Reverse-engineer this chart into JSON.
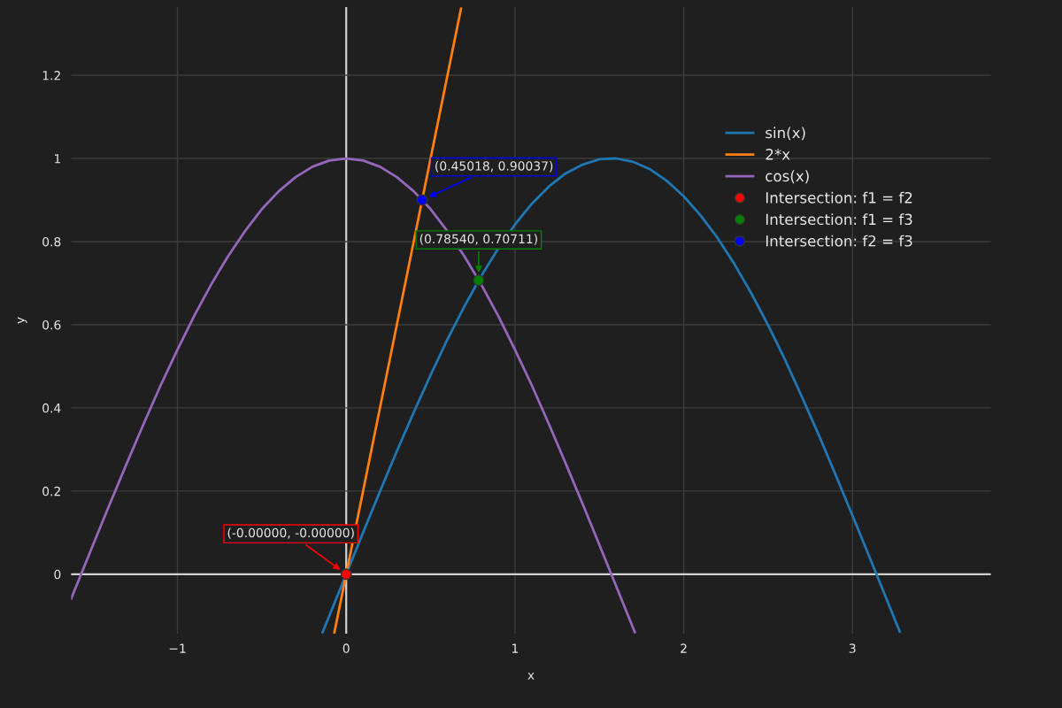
{
  "chart_data": {
    "type": "line",
    "xlabel": "x",
    "ylabel": "y",
    "xlim": [
      -1.63,
      3.82
    ],
    "ylim": [
      -0.143,
      1.364
    ],
    "xticks": [
      {
        "value": -1,
        "label": "−1"
      },
      0,
      1,
      2,
      3
    ],
    "yticks": [
      0,
      0.2,
      0.4,
      0.6,
      0.8,
      1,
      1.2
    ],
    "grid": true,
    "legend": "top right",
    "line_style": "solid",
    "series": [
      {
        "name": "sin(x)",
        "color": "#1f77b4",
        "x": [
          -0.14,
          -0.1,
          0,
          0.1,
          0.2,
          0.3,
          0.4,
          0.5,
          0.6,
          0.7,
          0.8,
          0.9,
          1.0,
          1.1,
          1.2,
          1.3,
          1.4,
          1.5,
          1.6,
          1.7,
          1.8,
          1.9,
          2.0,
          2.1,
          2.2,
          2.3,
          2.4,
          2.5,
          2.6,
          2.7,
          2.8,
          2.9,
          3.0,
          3.1,
          3.2,
          3.28
        ],
        "values": [
          -0.14,
          -0.1,
          0,
          0.1,
          0.199,
          0.296,
          0.389,
          0.479,
          0.565,
          0.644,
          0.717,
          0.783,
          0.841,
          0.891,
          0.932,
          0.964,
          0.985,
          0.998,
          1.0,
          0.992,
          0.974,
          0.946,
          0.909,
          0.863,
          0.809,
          0.746,
          0.676,
          0.599,
          0.516,
          0.427,
          0.335,
          0.239,
          0.141,
          0.042,
          -0.058,
          -0.138
        ]
      },
      {
        "name": "2*x",
        "color": "#ff7f0e",
        "x": [
          -0.07,
          0.68
        ],
        "values": [
          -0.14,
          1.36
        ]
      },
      {
        "name": "cos(x)",
        "color": "#9467bd",
        "x": [
          -1.63,
          -1.6,
          -1.5,
          -1.4,
          -1.3,
          -1.2,
          -1.1,
          -1.0,
          -0.9,
          -0.8,
          -0.7,
          -0.6,
          -0.5,
          -0.4,
          -0.3,
          -0.2,
          -0.1,
          0,
          0.1,
          0.2,
          0.3,
          0.4,
          0.5,
          0.6,
          0.7,
          0.8,
          0.9,
          1.0,
          1.1,
          1.2,
          1.3,
          1.4,
          1.5,
          1.6,
          1.7,
          1.71
        ],
        "values": [
          -0.059,
          -0.029,
          0.071,
          0.17,
          0.267,
          0.362,
          0.454,
          0.54,
          0.622,
          0.697,
          0.765,
          0.825,
          0.878,
          0.921,
          0.955,
          0.98,
          0.995,
          1,
          0.995,
          0.98,
          0.955,
          0.921,
          0.878,
          0.825,
          0.765,
          0.697,
          0.622,
          0.54,
          0.454,
          0.362,
          0.267,
          0.17,
          0.071,
          -0.029,
          -0.129,
          -0.139
        ]
      },
      {
        "name": "Intersection: f1 = f2",
        "type": "scatter",
        "marker": "circle",
        "color": "#ff0000",
        "x": [
          0
        ],
        "values": [
          0
        ]
      },
      {
        "name": "Intersection: f1 = f3",
        "type": "scatter",
        "marker": "circle",
        "color": "#008000",
        "x": [
          0.785
        ],
        "values": [
          0.707
        ]
      },
      {
        "name": "Intersection: f2 = f3",
        "type": "scatter",
        "marker": "circle",
        "color": "#0000ff",
        "x": [
          0.45
        ],
        "values": [
          0.9
        ]
      }
    ],
    "annotations": [
      {
        "text": "(-0.00000, -0.00000)",
        "x": 0,
        "y": 0
      },
      {
        "text": "(0.78540, 0.70711)",
        "x": 0.785,
        "y": 0.707
      },
      {
        "text": "(0.45018, 0.90037)",
        "x": 0.45,
        "y": 0.9
      }
    ]
  }
}
